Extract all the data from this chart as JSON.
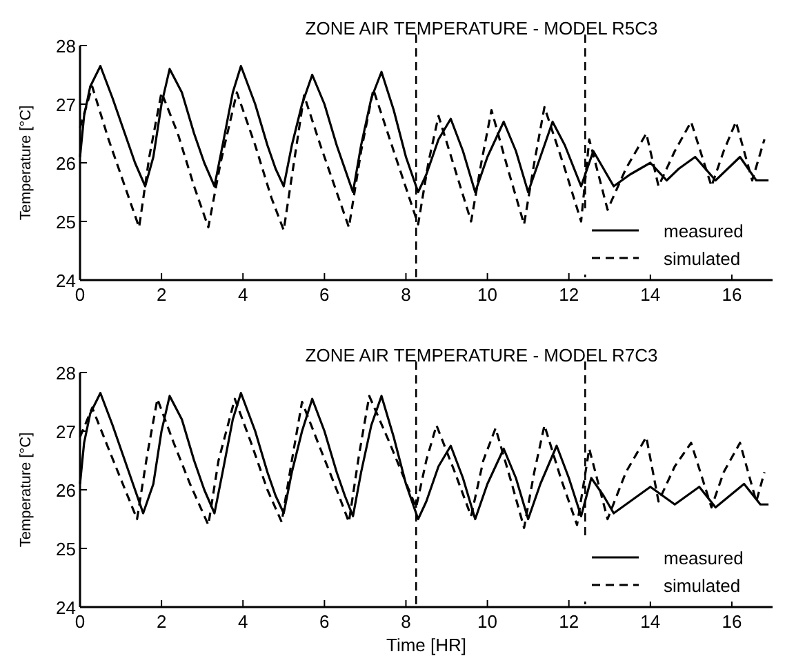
{
  "chart_data": [
    {
      "type": "line",
      "title": "ZONE AIR TEMPERATURE - MODEL R5C3",
      "ylabel": "Temperature [°C]",
      "xlim": [
        0,
        17
      ],
      "xticks": [
        0,
        2,
        4,
        6,
        8,
        10,
        12,
        14,
        16
      ],
      "ylim": [
        24,
        28
      ],
      "yticks": [
        24,
        25,
        26,
        27,
        28
      ],
      "legend": "bottom right",
      "grid": false,
      "tick_labels": true,
      "ref_lines": [
        {
          "axis": "x",
          "value": 8.25,
          "line_style": "dashed",
          "color": "#000000"
        },
        {
          "axis": "x",
          "value": 12.4,
          "line_style": "dashed",
          "color": "#000000"
        }
      ],
      "series": [
        {
          "name": "measured",
          "color": "#000000",
          "line_style": "solid",
          "x": [
            0,
            0.1,
            0.25,
            0.5,
            0.8,
            1.1,
            1.35,
            1.6,
            1.8,
            2.0,
            2.2,
            2.5,
            2.8,
            3.05,
            3.3,
            3.5,
            3.75,
            3.95,
            4.3,
            4.6,
            4.8,
            5.0,
            5.2,
            5.45,
            5.7,
            6.0,
            6.3,
            6.5,
            6.7,
            6.9,
            7.15,
            7.4,
            7.7,
            8.0,
            8.3,
            8.5,
            8.8,
            9.1,
            9.4,
            9.7,
            10.0,
            10.4,
            10.7,
            11.0,
            11.3,
            11.6,
            11.9,
            12.3,
            12.6,
            12.85,
            13.1,
            13.5,
            14.0,
            14.4,
            14.7,
            15.1,
            15.6,
            15.9,
            16.2,
            16.6,
            16.9
          ],
          "values": [
            26.1,
            26.8,
            27.3,
            27.65,
            27.1,
            26.5,
            26.0,
            25.6,
            26.1,
            27.0,
            27.6,
            27.2,
            26.5,
            26.0,
            25.6,
            26.3,
            27.2,
            27.65,
            27.0,
            26.3,
            25.9,
            25.6,
            26.3,
            27.0,
            27.5,
            27.0,
            26.3,
            25.9,
            25.5,
            26.3,
            27.1,
            27.55,
            26.9,
            26.1,
            25.5,
            25.8,
            26.4,
            26.75,
            26.2,
            25.5,
            26.1,
            26.7,
            26.2,
            25.5,
            26.1,
            26.7,
            26.3,
            25.6,
            26.2,
            25.9,
            25.6,
            25.8,
            26.0,
            25.7,
            25.9,
            26.1,
            25.7,
            25.9,
            26.1,
            25.7,
            25.7
          ]
        },
        {
          "name": "simulated",
          "color": "#000000",
          "line_style": "dashed",
          "x": [
            0,
            0.3,
            0.7,
            1.1,
            1.45,
            1.7,
            2.0,
            2.4,
            2.8,
            3.15,
            3.45,
            3.85,
            4.3,
            4.7,
            5.0,
            5.25,
            5.5,
            5.9,
            6.3,
            6.6,
            6.9,
            7.2,
            7.7,
            8.3,
            8.55,
            8.8,
            9.2,
            9.6,
            9.85,
            10.1,
            10.5,
            10.9,
            11.15,
            11.4,
            11.9,
            12.3,
            12.5,
            12.95,
            13.4,
            13.9,
            14.2,
            14.6,
            15.0,
            15.5,
            15.8,
            16.1,
            16.5,
            16.8
          ],
          "values": [
            26.6,
            27.3,
            26.4,
            25.6,
            24.9,
            26.1,
            27.2,
            26.5,
            25.6,
            24.9,
            26.0,
            27.2,
            26.3,
            25.4,
            24.85,
            26.0,
            27.15,
            26.3,
            25.5,
            24.9,
            26.2,
            27.25,
            26.2,
            24.95,
            26.0,
            26.8,
            25.9,
            25.0,
            26.0,
            26.9,
            25.9,
            24.95,
            26.0,
            26.95,
            25.9,
            25.0,
            26.4,
            25.2,
            25.9,
            26.5,
            25.6,
            26.2,
            26.7,
            25.6,
            26.2,
            26.7,
            25.7,
            26.4
          ]
        }
      ]
    },
    {
      "type": "line",
      "title": "ZONE AIR TEMPERATURE - MODEL R7C3",
      "xlabel": "Time [HR]",
      "ylabel": "Temperature [°C]",
      "xlim": [
        0,
        17
      ],
      "xticks": [
        0,
        2,
        4,
        6,
        8,
        10,
        12,
        14,
        16
      ],
      "ylim": [
        24,
        28
      ],
      "yticks": [
        24,
        25,
        26,
        27,
        28
      ],
      "legend": "bottom right",
      "grid": false,
      "tick_labels": true,
      "ref_lines": [
        {
          "axis": "x",
          "value": 8.25,
          "line_style": "dashed",
          "color": "#000000"
        },
        {
          "axis": "x",
          "value": 12.4,
          "line_style": "dashed",
          "color": "#000000"
        }
      ],
      "series": [
        {
          "name": "measured",
          "color": "#000000",
          "line_style": "solid",
          "x": [
            0,
            0.1,
            0.25,
            0.5,
            0.8,
            1.1,
            1.35,
            1.55,
            1.8,
            2.0,
            2.2,
            2.5,
            2.8,
            3.05,
            3.3,
            3.5,
            3.75,
            3.95,
            4.3,
            4.6,
            4.8,
            5.0,
            5.2,
            5.45,
            5.7,
            6.0,
            6.3,
            6.5,
            6.7,
            6.9,
            7.15,
            7.4,
            7.7,
            8.0,
            8.3,
            8.5,
            8.8,
            9.1,
            9.4,
            9.7,
            10.0,
            10.4,
            10.7,
            11.0,
            11.3,
            11.7,
            12.0,
            12.3,
            12.55,
            12.85,
            13.1,
            13.5,
            14.0,
            14.6,
            15.2,
            15.6,
            16.3,
            16.7,
            16.9
          ],
          "values": [
            26.1,
            26.8,
            27.3,
            27.65,
            27.1,
            26.5,
            26.0,
            25.6,
            26.1,
            27.0,
            27.6,
            27.2,
            26.5,
            26.0,
            25.6,
            26.3,
            27.2,
            27.65,
            27.0,
            26.3,
            25.9,
            25.6,
            26.3,
            27.0,
            27.55,
            27.0,
            26.3,
            25.9,
            25.55,
            26.3,
            27.1,
            27.6,
            26.9,
            26.1,
            25.5,
            25.8,
            26.4,
            26.75,
            26.2,
            25.5,
            26.1,
            26.7,
            26.2,
            25.5,
            26.1,
            26.75,
            26.2,
            25.55,
            26.2,
            25.9,
            25.6,
            25.8,
            26.05,
            25.75,
            26.05,
            25.7,
            26.1,
            25.75,
            25.75
          ]
        },
        {
          "name": "simulated",
          "color": "#000000",
          "line_style": "dashed",
          "x": [
            0,
            0.3,
            0.7,
            1.05,
            1.4,
            1.65,
            1.9,
            2.3,
            2.7,
            3.15,
            3.4,
            3.8,
            4.2,
            4.6,
            4.95,
            5.2,
            5.45,
            5.9,
            6.3,
            6.6,
            6.85,
            7.1,
            7.6,
            8.25,
            8.5,
            8.75,
            9.2,
            9.6,
            9.9,
            10.2,
            10.6,
            10.9,
            11.15,
            11.4,
            11.8,
            12.2,
            12.5,
            12.95,
            13.4,
            13.9,
            14.2,
            14.6,
            15.0,
            15.5,
            15.8,
            16.2,
            16.6,
            16.8
          ],
          "values": [
            26.9,
            27.4,
            26.7,
            26.1,
            25.5,
            26.6,
            27.55,
            26.8,
            26.1,
            25.4,
            26.5,
            27.55,
            26.8,
            26.0,
            25.45,
            26.5,
            27.5,
            26.7,
            26.0,
            25.45,
            26.6,
            27.6,
            26.8,
            25.7,
            26.5,
            27.1,
            26.3,
            25.55,
            26.5,
            27.05,
            26.1,
            25.35,
            26.3,
            27.1,
            26.2,
            25.4,
            26.7,
            25.5,
            26.3,
            26.9,
            25.8,
            26.4,
            26.8,
            25.7,
            26.3,
            26.8,
            25.8,
            26.3
          ]
        }
      ]
    }
  ]
}
